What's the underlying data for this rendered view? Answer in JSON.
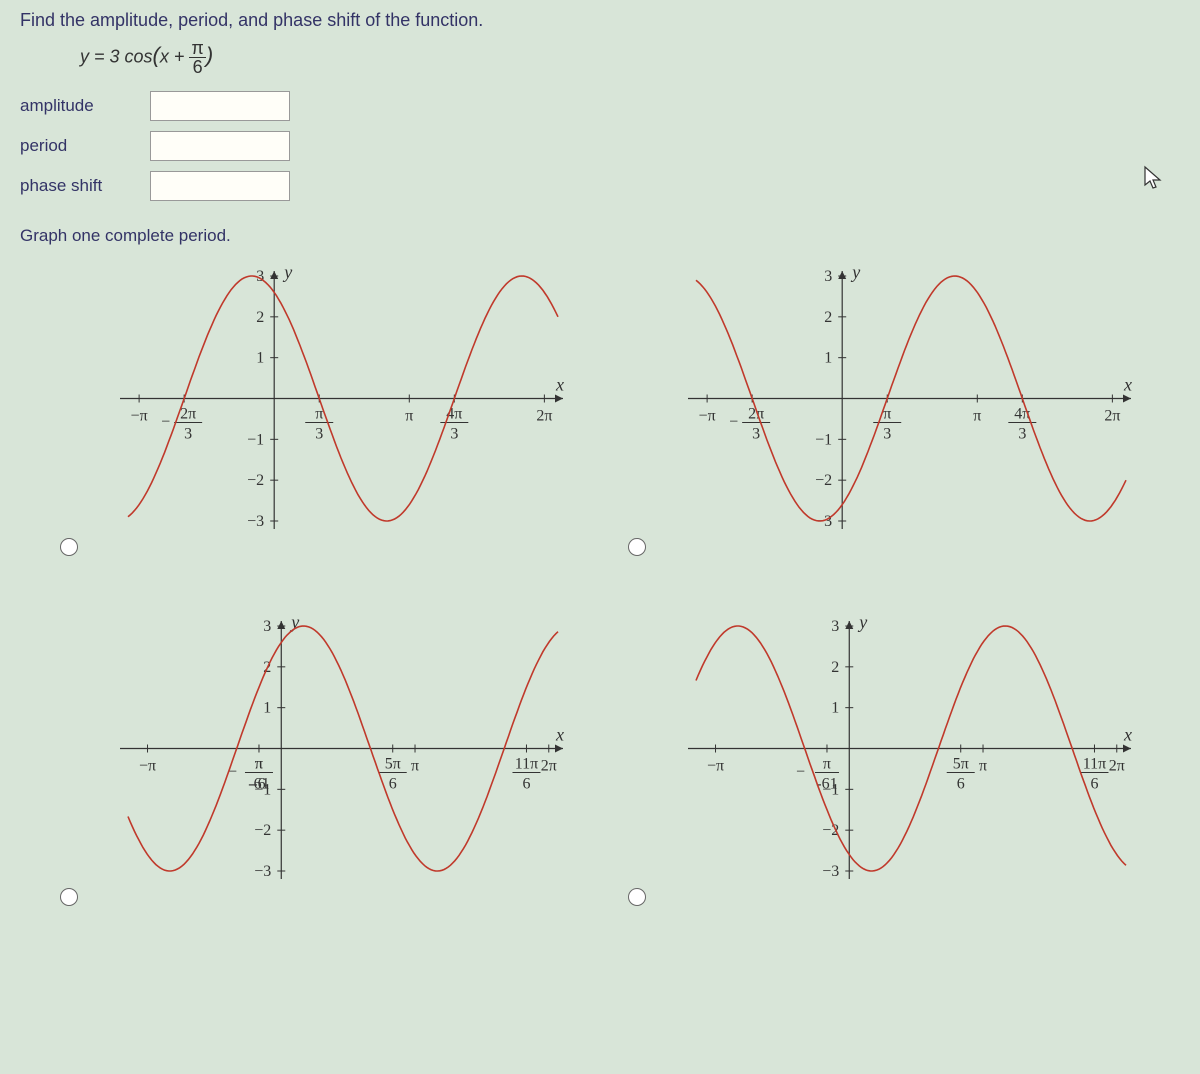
{
  "instruction": "Find the amplitude, period, and phase shift of the function.",
  "equation_text": "y = 3 cos(x + π/6)",
  "inputs": {
    "amplitude_label": "amplitude",
    "period_label": "period",
    "phase_shift_label": "phase shift"
  },
  "subhead": "Graph one complete period.",
  "axis_labels": {
    "x": "x",
    "y": "y"
  },
  "chart_style": {
    "curve_color": "#c0392b",
    "axis_color": "#333333",
    "tick_color": "#666666",
    "background": "#d8e5d8",
    "curve_width": 1.6,
    "axis_width": 1.2
  },
  "charts": [
    {
      "id": "A",
      "ylim": [
        -3,
        3
      ],
      "ytick_step": 1,
      "xlim": [
        -3.4,
        6.6
      ],
      "xticks": [
        {
          "x": -3.1416,
          "label": "-π"
        },
        {
          "x": -2.0944,
          "num": "2π",
          "den": "3",
          "neg": true
        },
        {
          "x": 1.0472,
          "num": "π",
          "den": "3"
        },
        {
          "x": 3.1416,
          "label": "π"
        },
        {
          "x": 4.1888,
          "num": "4π",
          "den": "3"
        },
        {
          "x": 6.2832,
          "label": "2π"
        }
      ],
      "curve": {
        "type": "cos",
        "amp": 3,
        "phase": 0.5236,
        "omega": 1,
        "yshift": 0
      }
    },
    {
      "id": "B",
      "ylim": [
        -3,
        3
      ],
      "ytick_step": 1,
      "xlim": [
        -3.4,
        6.6
      ],
      "xticks": [
        {
          "x": -3.1416,
          "label": "-π"
        },
        {
          "x": -2.0944,
          "num": "2π",
          "den": "3",
          "neg": true
        },
        {
          "x": 1.0472,
          "num": "π",
          "den": "3"
        },
        {
          "x": 3.1416,
          "label": "π"
        },
        {
          "x": 4.1888,
          "num": "4π",
          "den": "3"
        },
        {
          "x": 6.2832,
          "label": "2π"
        }
      ],
      "curve": {
        "type": "cos",
        "amp": -3,
        "phase": 0.5236,
        "omega": 1,
        "yshift": 0
      }
    },
    {
      "id": "C",
      "ylim": [
        -3,
        3
      ],
      "ytick_step": 1,
      "xlim": [
        -3.6,
        6.5
      ],
      "xticks": [
        {
          "x": -3.1416,
          "label": "-π"
        },
        {
          "x": -0.5236,
          "num": "π",
          "den": "-6",
          "neg": false,
          "special_minus_six": false,
          "below_num_den": [
            "π",
            "-61",
            "neg"
          ]
        },
        {
          "x": 0,
          "skip": true
        },
        {
          "x": 2.618,
          "num": "5π",
          "den": "6"
        },
        {
          "x": 3.1416,
          "label": "π"
        },
        {
          "x": 5.7596,
          "num": "11π",
          "den": "6"
        },
        {
          "x": 6.2832,
          "label": "2π"
        }
      ],
      "neg_pi_6_tick": {
        "x": -0.5236,
        "num": "π",
        "den": "-61"
      },
      "curve": {
        "type": "cos",
        "amp": 3,
        "phase": -0.5236,
        "omega": 1,
        "yshift": 0
      }
    },
    {
      "id": "D",
      "ylim": [
        -3,
        3
      ],
      "ytick_step": 1,
      "xlim": [
        -3.6,
        6.5
      ],
      "xticks": [
        {
          "x": -3.1416,
          "label": "-π"
        },
        {
          "x": 2.618,
          "num": "5π",
          "den": "6"
        },
        {
          "x": 3.1416,
          "label": "π"
        },
        {
          "x": 5.7596,
          "num": "11π",
          "den": "6"
        },
        {
          "x": 6.2832,
          "label": "2π"
        }
      ],
      "neg_pi_6_tick": {
        "x": -0.5236,
        "num": "π",
        "den": "-61"
      },
      "curve": {
        "type": "cos",
        "amp": -3,
        "phase": -0.5236,
        "omega": 1,
        "yshift": 0
      }
    }
  ]
}
